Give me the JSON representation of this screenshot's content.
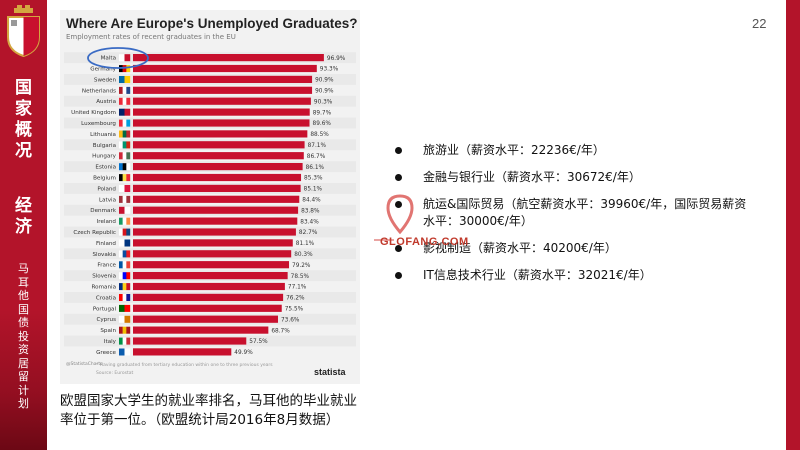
{
  "page_number": "22",
  "sidebar": {
    "title_chars": [
      "国",
      "家",
      "概",
      "况"
    ],
    "title2_chars": [
      "经",
      "济"
    ],
    "subtitle_chars": [
      "马",
      "耳",
      "他",
      "国",
      "债",
      "投",
      "资",
      "居",
      "留",
      "计",
      "划"
    ]
  },
  "chart_data": {
    "type": "bar",
    "orientation": "horizontal",
    "title": "Where Are Europe's Unemployed Graduates?",
    "subtitle": "Employment rates of recent graduates in the EU",
    "categories": [
      "Malta",
      "Germany",
      "Sweden",
      "Netherlands",
      "Austria",
      "United Kingdom",
      "Luxembourg",
      "Lithuania",
      "Bulgaria",
      "Hungary",
      "Estonia",
      "Belgium",
      "Poland",
      "Latvia",
      "Denmark",
      "Ireland",
      "Czech Republic",
      "Finland",
      "Slovakia",
      "France",
      "Slovenia",
      "Romania",
      "Croatia",
      "Portugal",
      "Cyprus",
      "Spain",
      "Italy",
      "Greece"
    ],
    "values": [
      96.9,
      93.3,
      90.9,
      90.9,
      90.3,
      89.7,
      89.6,
      88.5,
      87.1,
      86.7,
      86.1,
      85.3,
      85.1,
      84.4,
      83.8,
      83.4,
      82.7,
      81.1,
      80.3,
      79.2,
      78.5,
      77.1,
      76.2,
      75.5,
      73.6,
      68.7,
      57.5,
      49.9
    ],
    "value_labels": [
      "96.9%",
      "93.3%",
      "90.9%",
      "90.9%",
      "90.3%",
      "89.7%",
      "89.6%",
      "88.5%",
      "87.1%",
      "86.7%",
      "86.1%",
      "85.3%",
      "85.1%",
      "84.4%",
      "83.8%",
      "83.4%",
      "82.7%",
      "81.1%",
      "80.3%",
      "79.2%",
      "78.5%",
      "77.1%",
      "76.2%",
      "75.5%",
      "73.6%",
      "68.7%",
      "57.5%",
      "49.9%"
    ],
    "xlim": [
      0,
      100
    ],
    "bar_color": "#c8102e",
    "highlight": "Malta",
    "footnote": "* Having graduated from tertiary education within one to three previous years",
    "source": "Source: Eurostat",
    "brand": "statista",
    "cc_text": "@StatistaCharts"
  },
  "caption": "欧盟国家大学生的就业率排名，马耳他的毕业就业率位于第一位。（欧盟统计局2016年8月数据）",
  "bullets": [
    "旅游业（薪资水平：22236€/年）",
    "金融与银行业（薪资水平：30672€/年）",
    "航运&国际贸易（航空薪资水平：39960€/年，国际贸易薪资水平：30000€/年）",
    "影视制造（薪资水平：40200€/年）",
    "IT信息技术行业（薪资水平：32021€/年）"
  ],
  "watermark": "GLOFANG.COM",
  "colors": {
    "brand_red": "#b3142a",
    "bar_red": "#c8102e"
  }
}
